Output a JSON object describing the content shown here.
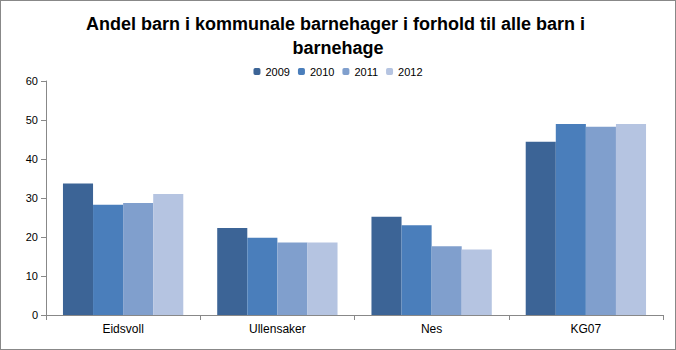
{
  "chart_data": {
    "type": "bar",
    "title": "Andel barn i kommunale barnehager i forhold til alle barn i barnehage",
    "categories": [
      "Eidsvoll",
      "Ullensaker",
      "Nes",
      "KG07"
    ],
    "series": [
      {
        "name": "2009",
        "color": "#3c6496",
        "values": [
          33.7,
          22.3,
          25.2,
          44.4
        ]
      },
      {
        "name": "2010",
        "color": "#4a7ebb",
        "values": [
          28.3,
          19.8,
          23.0,
          49.0
        ]
      },
      {
        "name": "2011",
        "color": "#809fcd",
        "values": [
          28.7,
          18.6,
          17.6,
          48.3
        ]
      },
      {
        "name": "2012",
        "color": "#b5c4e1",
        "values": [
          31.0,
          18.6,
          16.8,
          49.0
        ]
      }
    ],
    "ylim": [
      0,
      60
    ],
    "yticks": [
      0,
      10,
      20,
      30,
      40,
      50,
      60
    ],
    "grid": false,
    "legend": "top"
  }
}
